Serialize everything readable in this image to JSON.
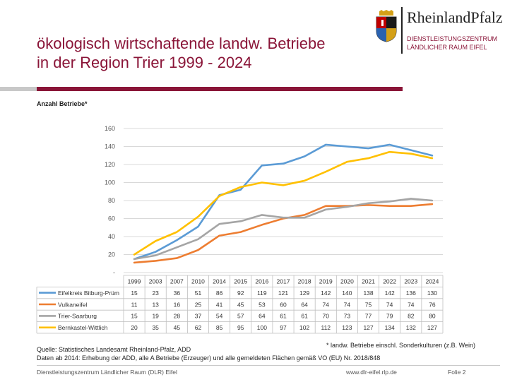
{
  "slide": {
    "title_line1": "ökologisch wirtschaftende landw. Betriebe",
    "title_line2": "in der Region Trier 1999 - 2024",
    "y_caption": "Anzahl Betriebe*",
    "footnote": "* landw. Betriebe einschl. Sonderkulturen (z.B. Wein)",
    "source_line1": "Quelle: Statistisches Landesamt Rheinland-Pfalz, ADD",
    "source_line2": "Daten ab 2014: Erhebung der ADD, alle A Betriebe (Erzeuger) und alle gemeldeten Flächen gemäß VO (EU) Nr. 2018/848"
  },
  "logo": {
    "brand": "RheinlandPfalz",
    "org_line1": "DIENSTLEISTUNGSZENTRUM",
    "org_line2": "LÄNDLICHER RAUM EIFEL",
    "crest_icon": "coat-of-arms-icon"
  },
  "footer": {
    "left": "Dienstleistungszentrum Ländlicher Raum (DLR) Eifel",
    "center": "www.dlr-eifel.rlp.de",
    "right": "Folie 2"
  },
  "colors": {
    "accent": "#8a1538",
    "Eifelkreis Bitburg-Prüm": "#5b9bd5",
    "Vulkaneifel": "#ed7d31",
    "Trier-Saarburg": "#a5a5a5",
    "Bernkastel-Wittlich": "#ffc000"
  },
  "chart_data": {
    "type": "line",
    "x": [
      "1999",
      "2003",
      "2007",
      "2010",
      "2014",
      "2015",
      "2016",
      "2017",
      "2018",
      "2019",
      "2020",
      "2021",
      "2022",
      "2023",
      "2024"
    ],
    "ylim": [
      0,
      160
    ],
    "yticks": [
      "-",
      "20",
      "40",
      "60",
      "80",
      "100",
      "120",
      "140",
      "160"
    ],
    "grid": true,
    "legend": "data table below chart",
    "series": [
      {
        "name": "Eifelkreis Bitburg-Prüm",
        "values": [
          15,
          23,
          36,
          51,
          86,
          92,
          119,
          121,
          129,
          142,
          140,
          138,
          142,
          136,
          130
        ]
      },
      {
        "name": "Vulkaneifel",
        "values": [
          11,
          13,
          16,
          25,
          41,
          45,
          53,
          60,
          64,
          74,
          74,
          75,
          74,
          74,
          76
        ]
      },
      {
        "name": "Trier-Saarburg",
        "values": [
          15,
          19,
          28,
          37,
          54,
          57,
          64,
          61,
          61,
          70,
          73,
          77,
          79,
          82,
          80
        ]
      },
      {
        "name": "Bernkastel-Wittlich",
        "values": [
          20,
          35,
          45,
          62,
          85,
          95,
          100,
          97,
          102,
          112,
          123,
          127,
          134,
          132,
          127
        ]
      }
    ]
  }
}
